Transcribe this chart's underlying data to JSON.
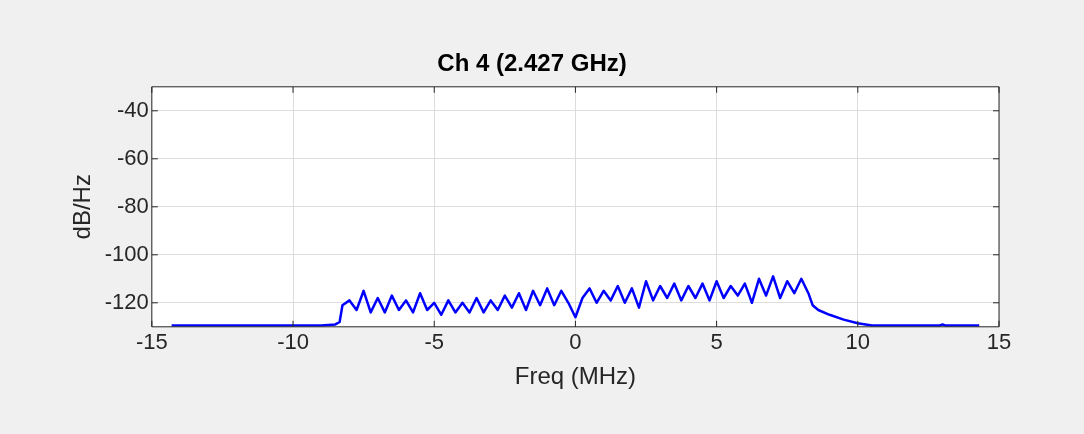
{
  "chart_data": {
    "type": "line",
    "title": "Ch 4 (2.427 GHz)",
    "xlabel": "Freq (MHz)",
    "ylabel": "dB/Hz",
    "x": [
      -14.3,
      -12,
      -10,
      -9,
      -8.5,
      -8.35,
      -8.25,
      -8,
      -7.75,
      -7.5,
      -7.25,
      -7,
      -6.75,
      -6.5,
      -6.25,
      -6,
      -5.75,
      -5.5,
      -5.25,
      -5,
      -4.75,
      -4.5,
      -4.25,
      -4,
      -3.75,
      -3.5,
      -3.25,
      -3,
      -2.75,
      -2.5,
      -2.25,
      -2,
      -1.75,
      -1.5,
      -1.25,
      -1,
      -0.75,
      -0.5,
      -0.25,
      0,
      0.25,
      0.5,
      0.75,
      1,
      1.25,
      1.5,
      1.75,
      2,
      2.25,
      2.5,
      2.75,
      3,
      3.25,
      3.5,
      3.75,
      4,
      4.25,
      4.5,
      4.75,
      5,
      5.25,
      5.5,
      5.75,
      6,
      6.25,
      6.5,
      6.75,
      7,
      7.25,
      7.5,
      7.75,
      8,
      8.25,
      8.4,
      8.6,
      9,
      9.5,
      10,
      10.5,
      11,
      12,
      12.9,
      13,
      13.1,
      14.3
    ],
    "series": [
      {
        "color": "#0000ff",
        "values": [
          -129.5,
          -129.5,
          -129.5,
          -129.5,
          -129,
          -128,
          -121,
          -119,
          -123,
          -115,
          -124,
          -118,
          -124,
          -117,
          -123,
          -119,
          -124,
          -116,
          -123,
          -120,
          -125,
          -119,
          -124,
          -120,
          -124,
          -118,
          -124,
          -119,
          -123,
          -117,
          -122,
          -116,
          -123,
          -115,
          -121,
          -114,
          -121,
          -115,
          -120,
          -126,
          -118,
          -114,
          -120,
          -115,
          -119,
          -113,
          -120,
          -114,
          -122,
          -111,
          -119,
          -113,
          -118,
          -112,
          -119,
          -113,
          -118,
          -112,
          -119,
          -111,
          -118,
          -113,
          -117,
          -112,
          -120,
          -110,
          -117,
          -109,
          -118,
          -111,
          -116,
          -110,
          -116,
          -121,
          -123,
          -125,
          -127,
          -128.5,
          -129.5,
          -129.5,
          -129.5,
          -129.5,
          -129,
          -129.5,
          -129.5
        ]
      }
    ],
    "xlim": [
      -15,
      15
    ],
    "xticks": [
      -15,
      -10,
      -5,
      0,
      5,
      10,
      15
    ],
    "ylim": [
      -130,
      -30
    ],
    "yticks": [
      -120,
      -100,
      -80,
      -60,
      -40
    ],
    "grid": true,
    "line_style": "solid",
    "marker": "none"
  }
}
